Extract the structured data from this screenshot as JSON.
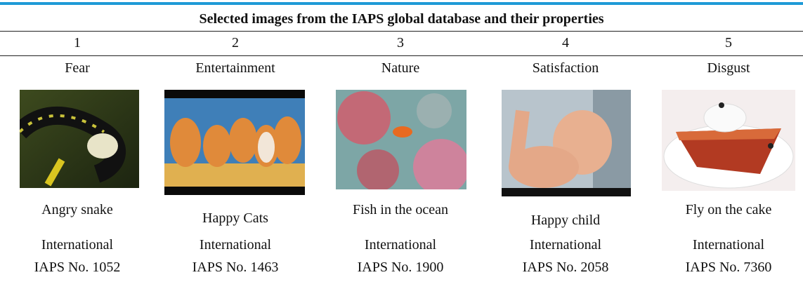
{
  "table": {
    "title": "Selected images from the IAPS global database and their properties",
    "columns": [
      {
        "number": 1,
        "category": "Fear",
        "caption": "Angry snake",
        "line1": "International",
        "line2": "IAPS No. 1052"
      },
      {
        "number": 2,
        "category": "Entertainment",
        "caption": "Happy Cats",
        "line1": "International",
        "line2": "IAPS No. 1463"
      },
      {
        "number": 3,
        "category": "Nature",
        "caption": "Fish in the ocean",
        "line1": "International",
        "line2": "IAPS No. 1900"
      },
      {
        "number": 4,
        "category": "Satisfaction",
        "caption": "Happy child",
        "line1": "International",
        "line2": "IAPS No. 2058"
      },
      {
        "number": 5,
        "category": "Disgust",
        "caption": "Fly on the cake",
        "line1": "International",
        "line2": "IAPS No. 7360"
      }
    ]
  }
}
